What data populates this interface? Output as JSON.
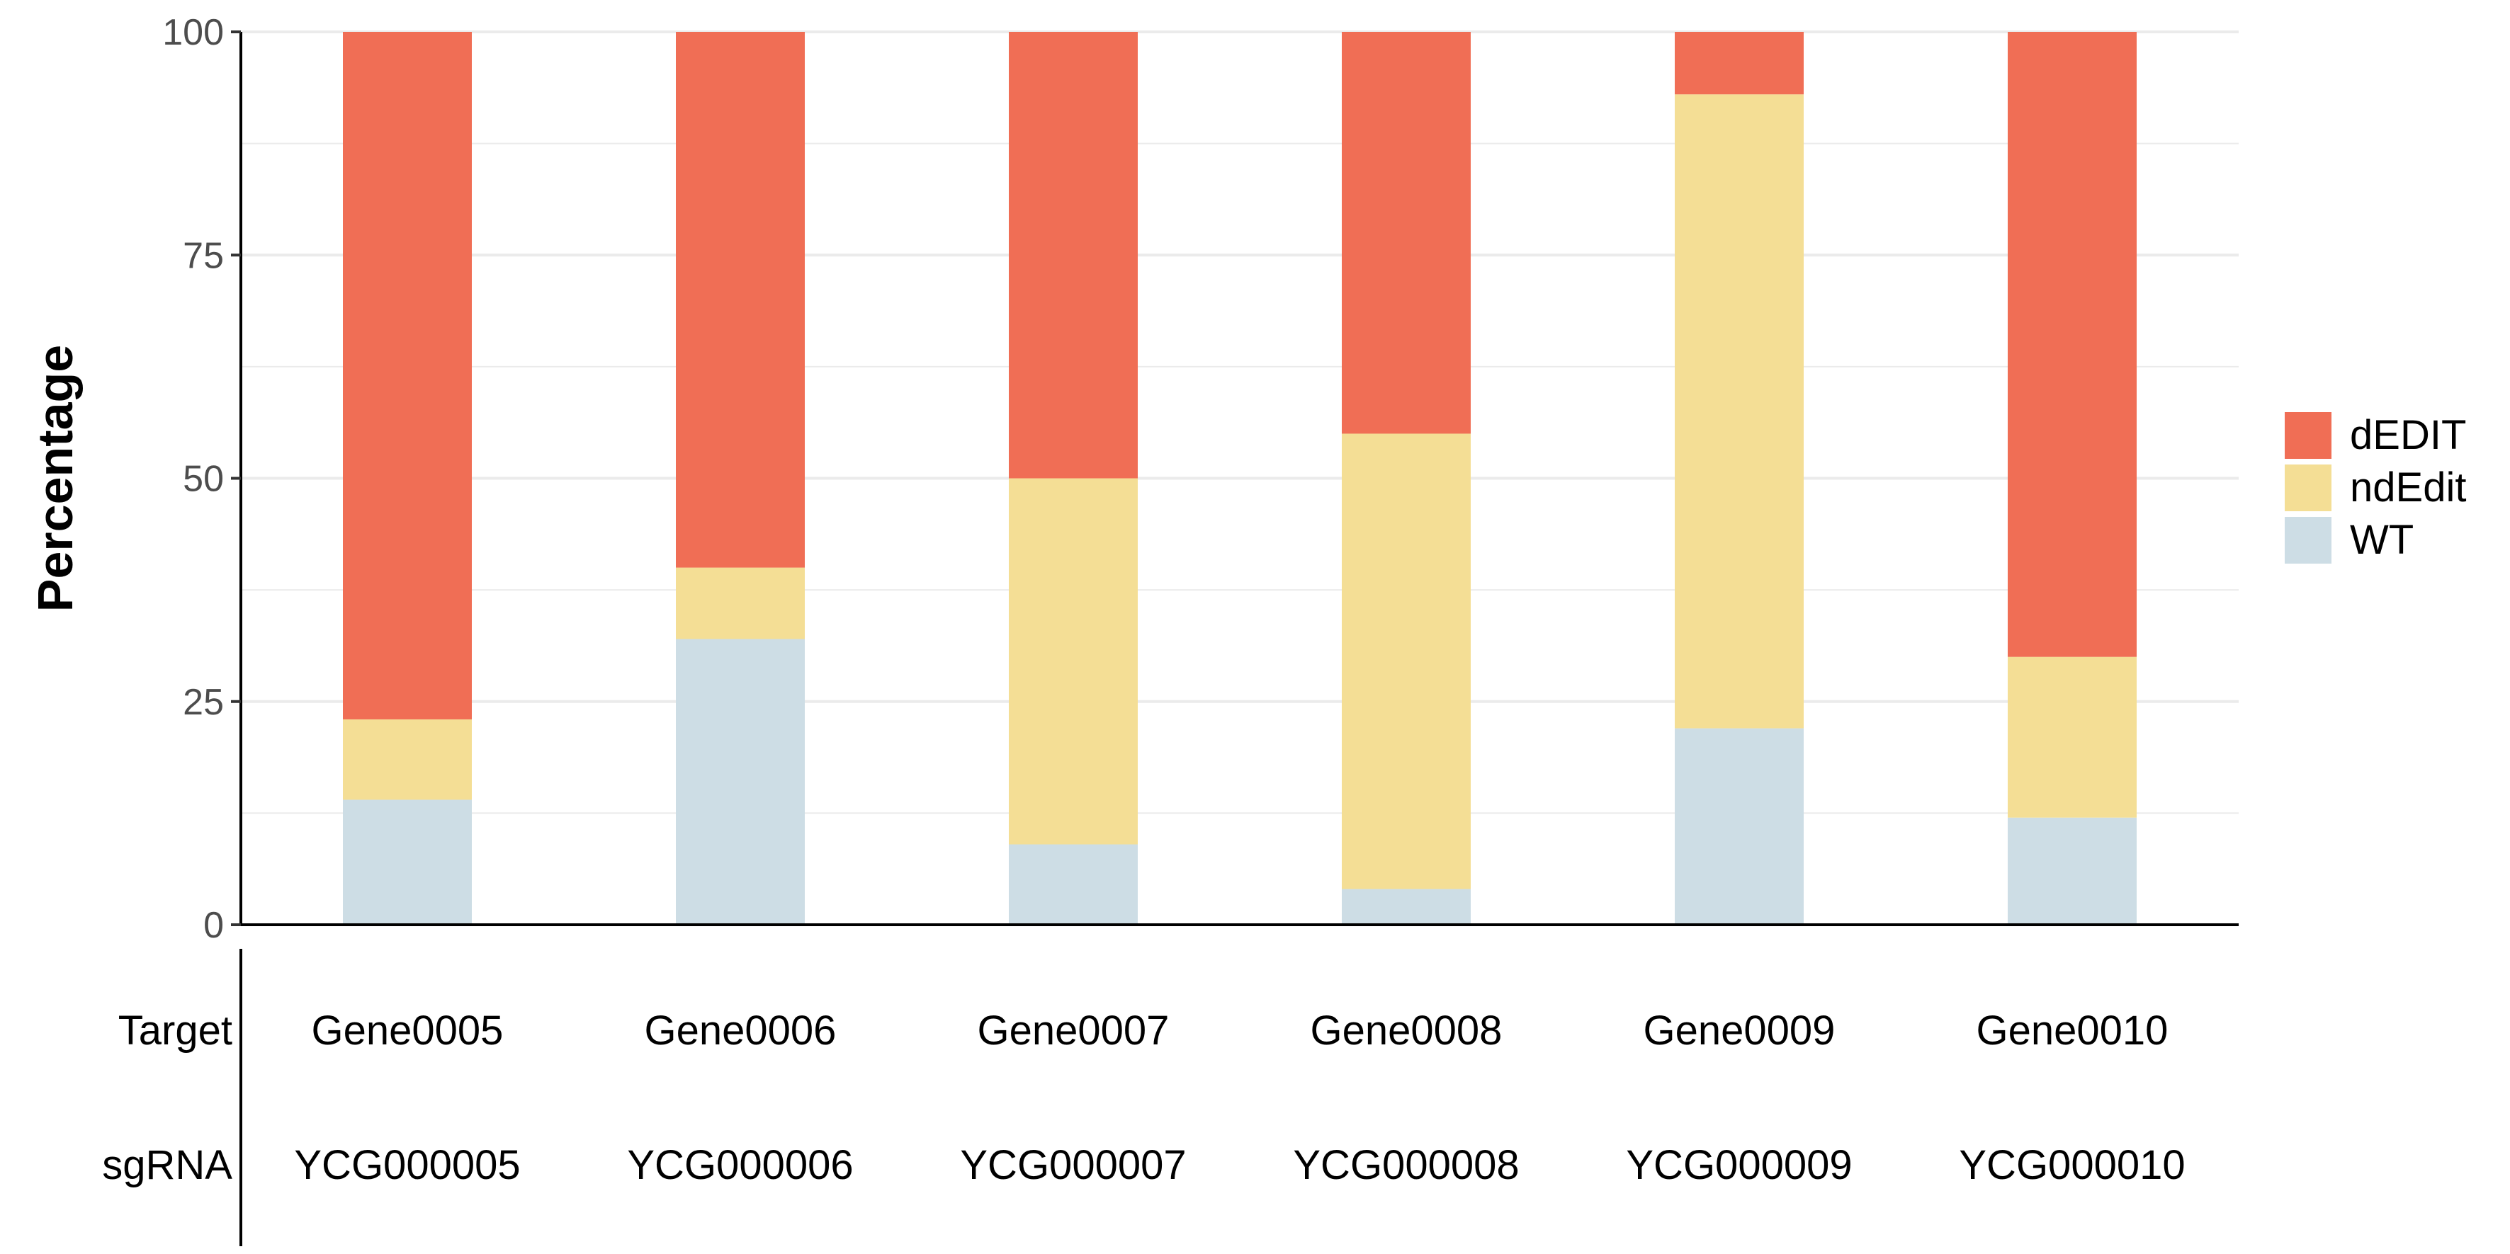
{
  "chart_data": {
    "type": "bar",
    "stacked": true,
    "categories": [
      "Gene0005",
      "Gene0006",
      "Gene0007",
      "Gene0008",
      "Gene0009",
      "Gene0010"
    ],
    "series": [
      {
        "name": "WT",
        "color": "#cddde5",
        "values": [
          14,
          32,
          9,
          4,
          22,
          12
        ]
      },
      {
        "name": "ndEdit",
        "color": "#f4de95",
        "values": [
          9,
          8,
          41,
          51,
          71,
          18
        ]
      },
      {
        "name": "dEDIT",
        "color": "#f06e55",
        "values": [
          77,
          60,
          50,
          45,
          7,
          70
        ]
      }
    ],
    "legend_order": [
      "dEDIT",
      "ndEdit",
      "WT"
    ],
    "ylabel": "Percentage",
    "xlabel": "",
    "ylim": [
      0,
      100
    ],
    "yticks": [
      0,
      25,
      50,
      75,
      100
    ],
    "grid": true,
    "legend_position": "right"
  },
  "table": {
    "row_labels": [
      "Target",
      "sgRNA"
    ],
    "rows": [
      [
        "Gene0005",
        "Gene0006",
        "Gene0007",
        "Gene0008",
        "Gene0009",
        "Gene0010"
      ],
      [
        "YCG000005",
        "YCG000006",
        "YCG000007",
        "YCG000008",
        "YCG000009",
        "YCG000010"
      ]
    ]
  }
}
